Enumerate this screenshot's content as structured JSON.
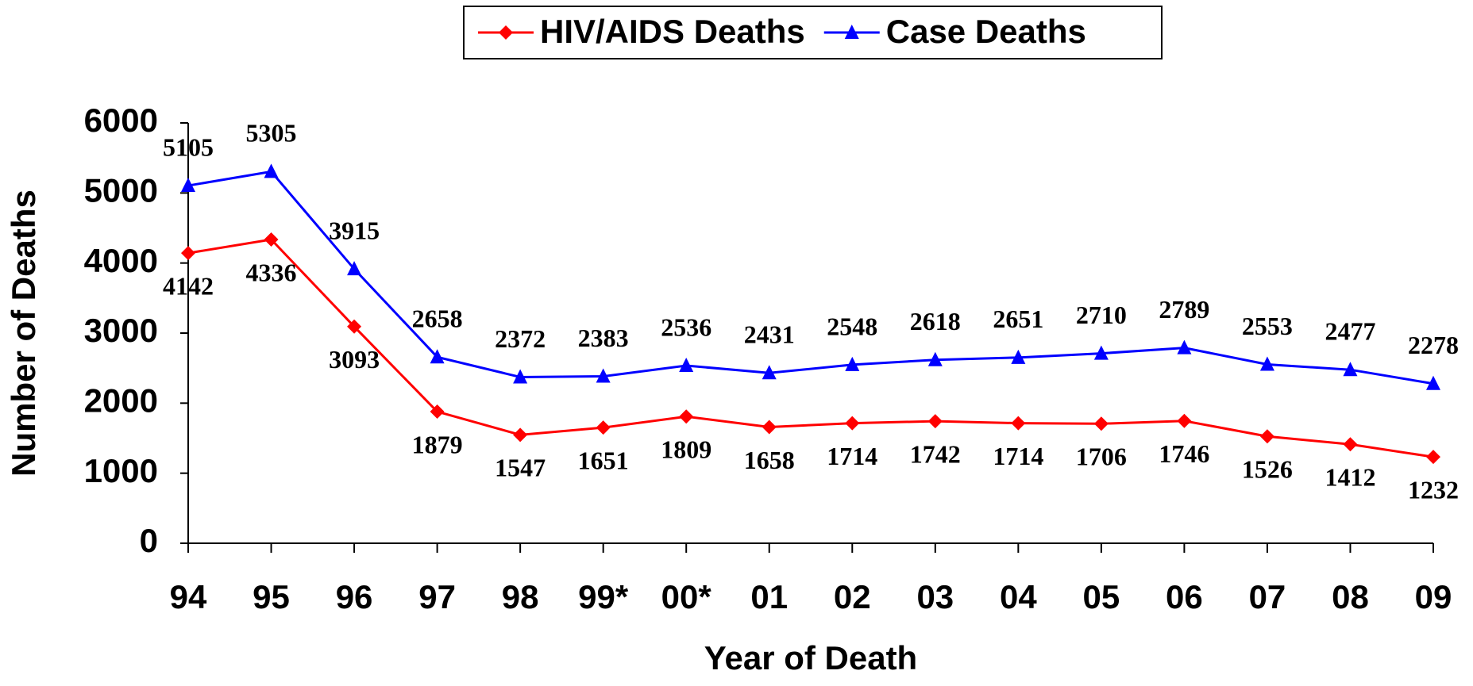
{
  "chart_data": {
    "type": "line",
    "x_label": "Year of Death",
    "y_label": "Number of Deaths",
    "categories": [
      "94",
      "95",
      "96",
      "97",
      "98",
      "99*",
      "00*",
      "01",
      "02",
      "03",
      "04",
      "05",
      "06",
      "07",
      "08",
      "09"
    ],
    "series": [
      {
        "name": "HIV/AIDS Deaths",
        "color": "#ff0000",
        "marker": "diamond",
        "values": [
          4142,
          4336,
          3093,
          1879,
          1547,
          1651,
          1809,
          1658,
          1714,
          1742,
          1714,
          1706,
          1746,
          1526,
          1412,
          1232
        ]
      },
      {
        "name": "Case Deaths",
        "color": "#0000ff",
        "marker": "triangle",
        "values": [
          5105,
          5305,
          3915,
          2658,
          2372,
          2383,
          2536,
          2431,
          2548,
          2618,
          2651,
          2710,
          2789,
          2553,
          2477,
          2278
        ]
      }
    ],
    "ylim": [
      0,
      6000
    ],
    "yticks": [
      0,
      1000,
      2000,
      3000,
      4000,
      5000,
      6000
    ],
    "legend": "top"
  }
}
